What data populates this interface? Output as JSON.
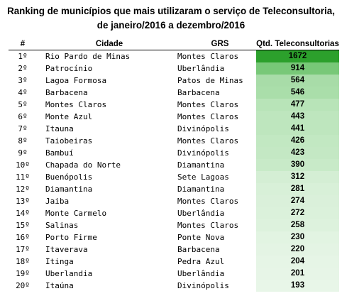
{
  "title": {
    "line1": "Ranking de municípios que mais utilizaram o serviço de Teleconsultoria,",
    "line2": "de janeiro/2016 a dezembro/2016"
  },
  "table": {
    "headers": {
      "rank": "#",
      "city": "Cidade",
      "grs": "GRS",
      "qtd": "Qtd. Teleconsultorias"
    },
    "rows": [
      {
        "rank": "1º",
        "city": "Rio Pardo de Minas",
        "grs": "Montes Claros",
        "qtd": "1672",
        "fill": "#2ca02c"
      },
      {
        "rank": "2º",
        "city": "Patrocínio",
        "grs": "Uberlândia",
        "qtd": "914",
        "fill": "#78c878"
      },
      {
        "rank": "3º",
        "city": "Lagoa Formosa",
        "grs": "Patos de Minas",
        "qtd": "564",
        "fill": "#a8dca8"
      },
      {
        "rank": "4º",
        "city": "Barbacena",
        "grs": "Barbacena",
        "qtd": "546",
        "fill": "#aadeaa"
      },
      {
        "rank": "5º",
        "city": "Montes Claros",
        "grs": "Montes Claros",
        "qtd": "477",
        "fill": "#b8e4b8"
      },
      {
        "rank": "6º",
        "city": "Monte Azul",
        "grs": "Montes Claros",
        "qtd": "443",
        "fill": "#bee6be"
      },
      {
        "rank": "7º",
        "city": "Itauna",
        "grs": "Divinópolis",
        "qtd": "441",
        "fill": "#bee6be"
      },
      {
        "rank": "8º",
        "city": "Taiobeiras",
        "grs": "Montes Claros",
        "qtd": "426",
        "fill": "#c2e8c2"
      },
      {
        "rank": "9º",
        "city": "Bambuí",
        "grs": "Divinópolis",
        "qtd": "423",
        "fill": "#c4e8c4"
      },
      {
        "rank": "10º",
        "city": "Chapada do Norte",
        "grs": "Diamantina",
        "qtd": "390",
        "fill": "#c8eac8"
      },
      {
        "rank": "11º",
        "city": "Buenópolis",
        "grs": "Sete Lagoas",
        "qtd": "312",
        "fill": "#d4eed4"
      },
      {
        "rank": "12º",
        "city": "Diamantina",
        "grs": "Diamantina",
        "qtd": "281",
        "fill": "#d8f0d8"
      },
      {
        "rank": "13º",
        "city": "Jaiba",
        "grs": "Montes Claros",
        "qtd": "274",
        "fill": "#daf0da"
      },
      {
        "rank": "14º",
        "city": "Monte Carmelo",
        "grs": "Uberlândia",
        "qtd": "272",
        "fill": "#dbf1db"
      },
      {
        "rank": "15º",
        "city": "Salinas",
        "grs": "Montes Claros",
        "qtd": "258",
        "fill": "#ddf2dd"
      },
      {
        "rank": "16º",
        "city": "Porto Firme",
        "grs": "Ponte Nova",
        "qtd": "230",
        "fill": "#e2f4e2"
      },
      {
        "rank": "17º",
        "city": "Itaverava",
        "grs": "Barbacena",
        "qtd": "220",
        "fill": "#e4f4e4"
      },
      {
        "rank": "18º",
        "city": "Itinga",
        "grs": "Pedra Azul",
        "qtd": "204",
        "fill": "#e6f5e6"
      },
      {
        "rank": "19º",
        "city": "Uberlandia",
        "grs": "Uberlândia",
        "qtd": "201",
        "fill": "#e7f5e7"
      },
      {
        "rank": "20º",
        "city": "Itaúna",
        "grs": "Divinópolis",
        "qtd": "193",
        "fill": "#e8f6e8"
      }
    ]
  }
}
